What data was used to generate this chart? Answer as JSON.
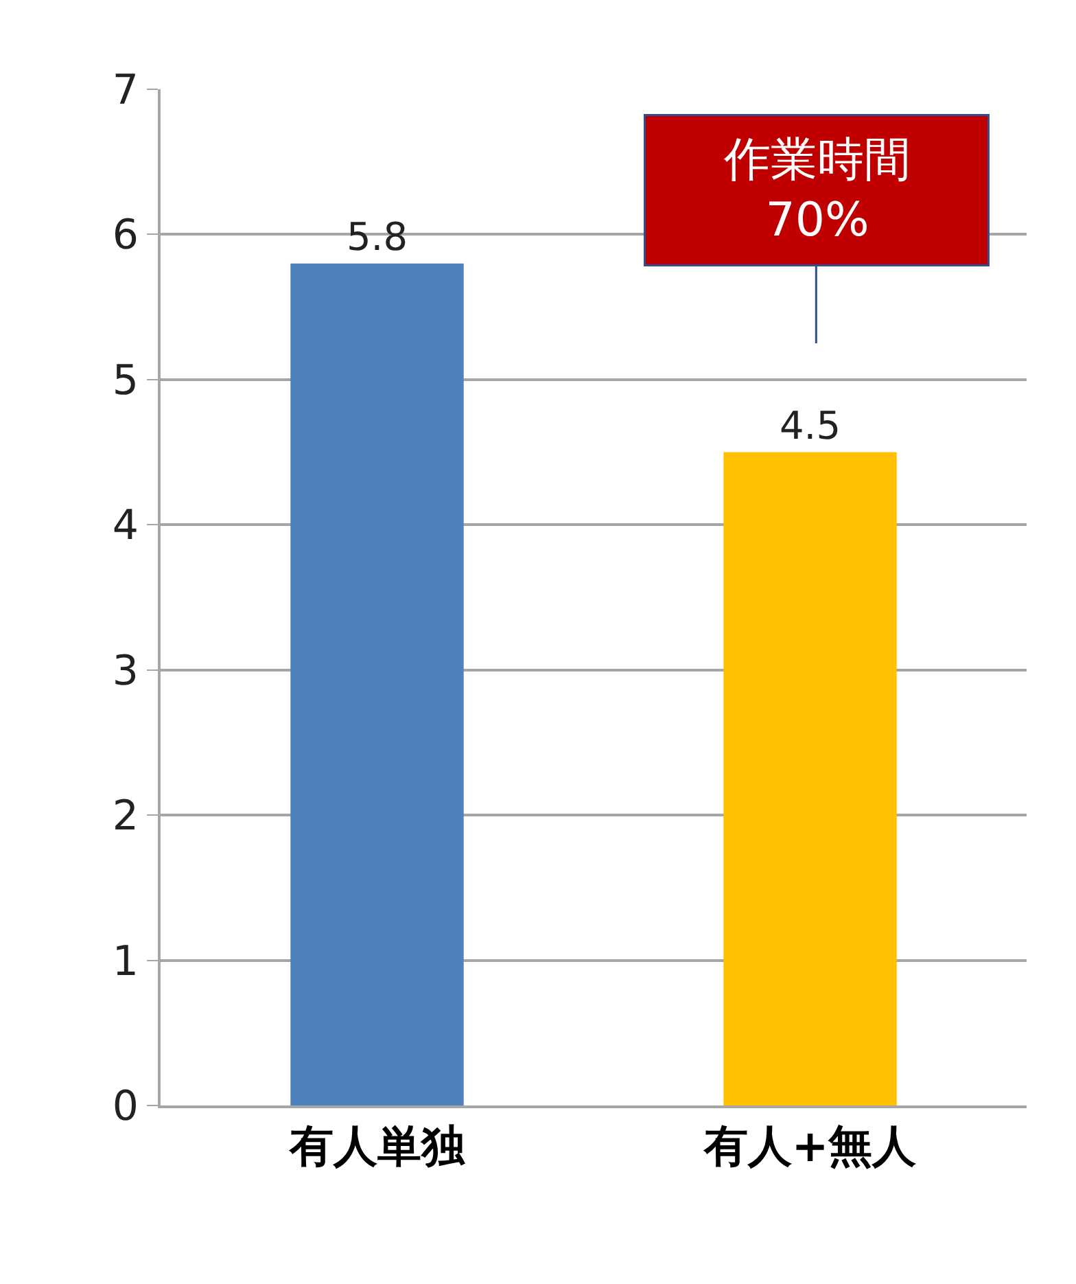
{
  "chart_data": {
    "type": "bar",
    "categories": [
      "有人単独",
      "有人+無人"
    ],
    "values": [
      5.8,
      4.5
    ],
    "colors": [
      "#4f81bd",
      "#ffc000"
    ],
    "ylim": [
      0,
      7
    ],
    "yticks": [
      0,
      1,
      2,
      3,
      4,
      5,
      6,
      7
    ],
    "grid": "y",
    "data_labels": true,
    "annotations": [
      "作業時間\n70%"
    ]
  }
}
